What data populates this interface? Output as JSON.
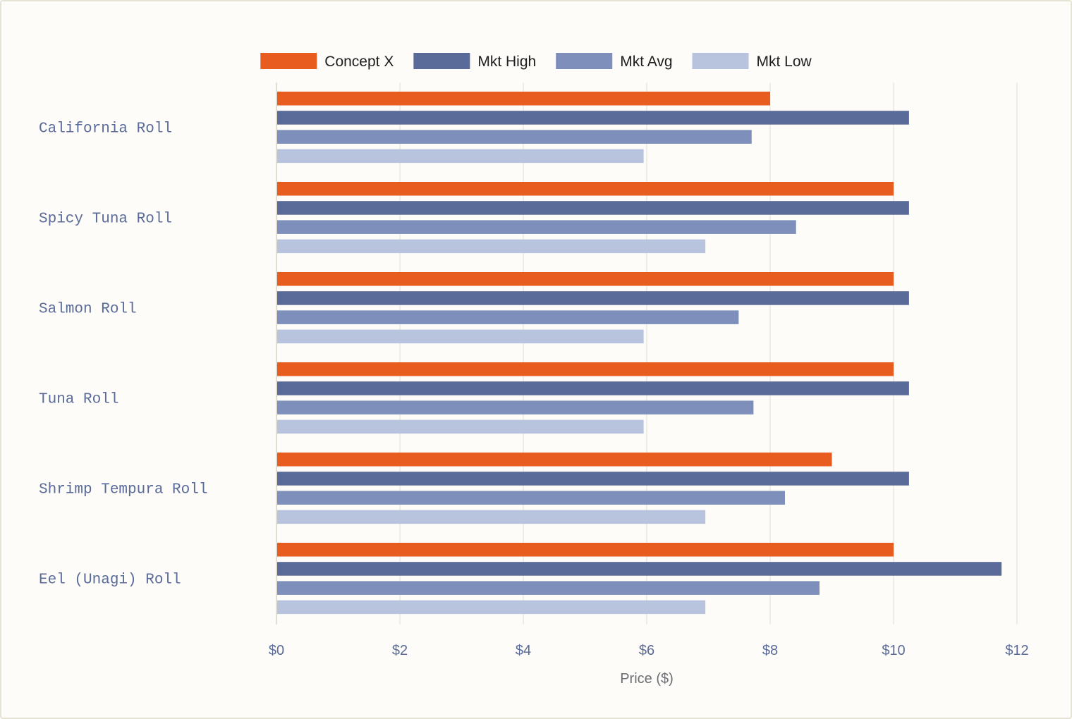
{
  "chart_data": {
    "type": "bar",
    "orientation": "horizontal",
    "categories": [
      "California Roll",
      "Spicy Tuna Roll",
      "Salmon Roll",
      "Tuna Roll",
      "Shrimp Tempura Roll",
      "Eel (Unagi) Roll"
    ],
    "series": [
      {
        "name": "Concept X",
        "color": "#e85d1f",
        "values": [
          8.0,
          10.0,
          10.0,
          10.0,
          9.0,
          10.0
        ]
      },
      {
        "name": "Mkt High",
        "color": "#5a6a99",
        "values": [
          10.25,
          10.25,
          10.25,
          10.25,
          10.25,
          11.75
        ]
      },
      {
        "name": "Mkt Avg",
        "color": "#7f8fbb",
        "values": [
          7.7,
          8.42,
          7.49,
          7.73,
          8.24,
          8.8
        ]
      },
      {
        "name": "Mkt Low",
        "color": "#b8c4de",
        "values": [
          5.95,
          6.95,
          5.95,
          5.95,
          6.95,
          6.95
        ]
      }
    ],
    "xlabel": "Price ($)",
    "ylabel": "",
    "xlim": [
      0,
      12
    ],
    "xticks": [
      0,
      2,
      4,
      6,
      8,
      10,
      12
    ],
    "tick_prefix": "$",
    "grid": true,
    "legend_position": "top-center"
  }
}
